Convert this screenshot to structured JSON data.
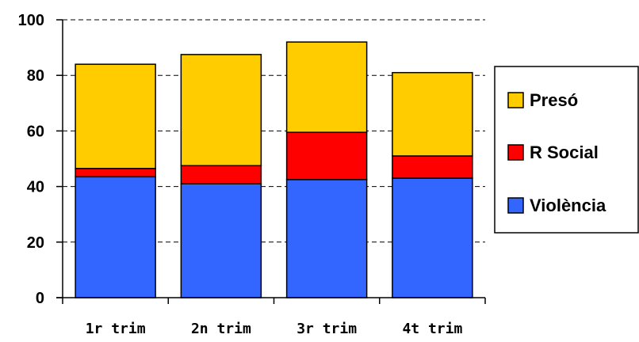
{
  "chart_data": {
    "type": "bar",
    "stacked": true,
    "categories": [
      "1r trim",
      "2n trim",
      "3r trim",
      "4t trim"
    ],
    "series": [
      {
        "name": "Violència",
        "color": "#3366ff",
        "values": [
          43.5,
          41,
          42.5,
          43
        ]
      },
      {
        "name": "R Social",
        "color": "#ff0000",
        "values": [
          3,
          6.5,
          17,
          8
        ]
      },
      {
        "name": "Presó",
        "color": "#ffcc00",
        "values": [
          37.5,
          40,
          32.5,
          30
        ]
      }
    ],
    "legend_order": [
      "Presó",
      "R Social",
      "Violència"
    ],
    "ylim": [
      0,
      100
    ],
    "yticks": [
      0,
      20,
      40,
      60,
      80,
      100
    ],
    "grid": "horizontal dashed",
    "legend_position": "right",
    "title": "",
    "xlabel": "",
    "ylabel": ""
  }
}
